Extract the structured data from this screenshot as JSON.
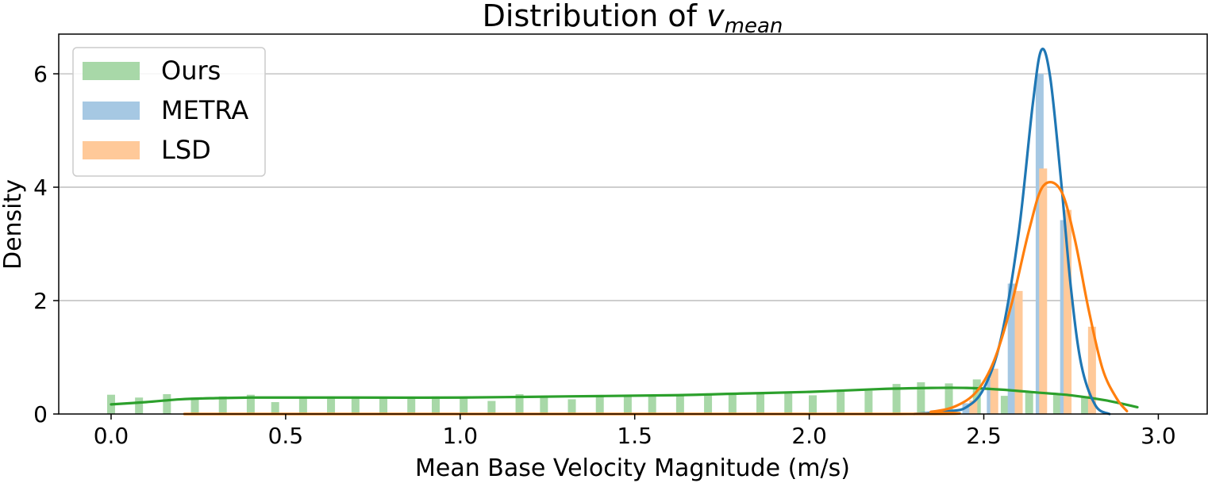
{
  "chart_data": {
    "type": "histogram+kde",
    "title_prefix": "Distribution of ",
    "title_symbol": "v",
    "title_subscript": "mean",
    "xlabel": "Mean Base Velocity Magnitude (m/s)",
    "ylabel": "Density",
    "xlim": [
      -0.15,
      3.14
    ],
    "ylim": [
      0,
      6.7
    ],
    "xticks": [
      0.0,
      0.5,
      1.0,
      1.5,
      2.0,
      2.5,
      3.0
    ],
    "xtick_labels": [
      "0.0",
      "0.5",
      "1.0",
      "1.5",
      "2.0",
      "2.5",
      "3.0"
    ],
    "yticks": [
      0,
      2,
      4,
      6
    ],
    "ytick_labels": [
      "0",
      "2",
      "4",
      "6"
    ],
    "ygrid": true,
    "legend_position": "upper-left",
    "series": [
      {
        "name": "Ours",
        "bar_color": "#a8d8a8",
        "line_color": "#2ca02c",
        "bins": [
          [
            0.0,
            0.34
          ],
          [
            0.08,
            0.29
          ],
          [
            0.16,
            0.35
          ],
          [
            0.24,
            0.29
          ],
          [
            0.32,
            0.31
          ],
          [
            0.4,
            0.34
          ],
          [
            0.47,
            0.21
          ],
          [
            0.55,
            0.31
          ],
          [
            0.63,
            0.31
          ],
          [
            0.7,
            0.31
          ],
          [
            0.78,
            0.3
          ],
          [
            0.86,
            0.3
          ],
          [
            0.93,
            0.31
          ],
          [
            1.01,
            0.3
          ],
          [
            1.09,
            0.23
          ],
          [
            1.17,
            0.35
          ],
          [
            1.24,
            0.3
          ],
          [
            1.32,
            0.26
          ],
          [
            1.4,
            0.33
          ],
          [
            1.48,
            0.34
          ],
          [
            1.55,
            0.33
          ],
          [
            1.63,
            0.34
          ],
          [
            1.71,
            0.34
          ],
          [
            1.78,
            0.35
          ],
          [
            1.86,
            0.35
          ],
          [
            1.94,
            0.36
          ],
          [
            2.01,
            0.33
          ],
          [
            2.09,
            0.43
          ],
          [
            2.17,
            0.41
          ],
          [
            2.25,
            0.53
          ],
          [
            2.32,
            0.56
          ],
          [
            2.4,
            0.54
          ],
          [
            2.48,
            0.61
          ],
          [
            2.56,
            0.32
          ],
          [
            2.63,
            0.39
          ],
          [
            2.71,
            0.36
          ],
          [
            2.79,
            0.3
          ]
        ],
        "kde": [
          [
            0.0,
            0.17
          ],
          [
            0.1,
            0.21
          ],
          [
            0.2,
            0.26
          ],
          [
            0.3,
            0.28
          ],
          [
            0.4,
            0.29
          ],
          [
            0.5,
            0.29
          ],
          [
            0.7,
            0.29
          ],
          [
            1.0,
            0.29
          ],
          [
            1.3,
            0.31
          ],
          [
            1.6,
            0.33
          ],
          [
            1.8,
            0.36
          ],
          [
            2.0,
            0.39
          ],
          [
            2.2,
            0.44
          ],
          [
            2.35,
            0.46
          ],
          [
            2.45,
            0.46
          ],
          [
            2.55,
            0.43
          ],
          [
            2.65,
            0.38
          ],
          [
            2.75,
            0.33
          ],
          [
            2.85,
            0.24
          ],
          [
            2.94,
            0.12
          ]
        ]
      },
      {
        "name": "METRA",
        "bar_color": "#a6c8e3",
        "line_color": "#1f77b4",
        "bins": [
          [
            2.38,
            0.06
          ],
          [
            2.45,
            0.19
          ],
          [
            2.52,
            0.62
          ],
          [
            2.58,
            2.3
          ],
          [
            2.66,
            6.0
          ],
          [
            2.73,
            3.42
          ],
          [
            2.81,
            0.31
          ]
        ],
        "kde": [
          [
            2.3,
            0.0
          ],
          [
            2.4,
            0.05
          ],
          [
            2.45,
            0.12
          ],
          [
            2.5,
            0.45
          ],
          [
            2.55,
            1.35
          ],
          [
            2.6,
            3.2
          ],
          [
            2.64,
            5.45
          ],
          [
            2.665,
            6.42
          ],
          [
            2.69,
            5.95
          ],
          [
            2.72,
            4.2
          ],
          [
            2.75,
            2.2
          ],
          [
            2.78,
            0.85
          ],
          [
            2.82,
            0.15
          ],
          [
            2.86,
            0.0
          ]
        ]
      },
      {
        "name": "LSD",
        "bar_color": "#ffc999",
        "line_color": "#ff7f0e",
        "bins": [
          [
            2.37,
            0.05
          ],
          [
            2.47,
            0.24
          ],
          [
            2.53,
            0.8
          ],
          [
            2.6,
            2.17
          ],
          [
            2.67,
            4.33
          ],
          [
            2.74,
            3.6
          ],
          [
            2.81,
            1.54
          ]
        ],
        "kde": [
          [
            0.21,
            0.0
          ],
          [
            2.25,
            0.0
          ],
          [
            2.35,
            0.04
          ],
          [
            2.42,
            0.14
          ],
          [
            2.48,
            0.4
          ],
          [
            2.53,
            0.95
          ],
          [
            2.58,
            1.95
          ],
          [
            2.63,
            3.25
          ],
          [
            2.67,
            4.02
          ],
          [
            2.72,
            3.95
          ],
          [
            2.76,
            3.1
          ],
          [
            2.8,
            1.85
          ],
          [
            2.84,
            0.8
          ],
          [
            2.88,
            0.28
          ],
          [
            2.91,
            0.05
          ]
        ]
      }
    ]
  }
}
